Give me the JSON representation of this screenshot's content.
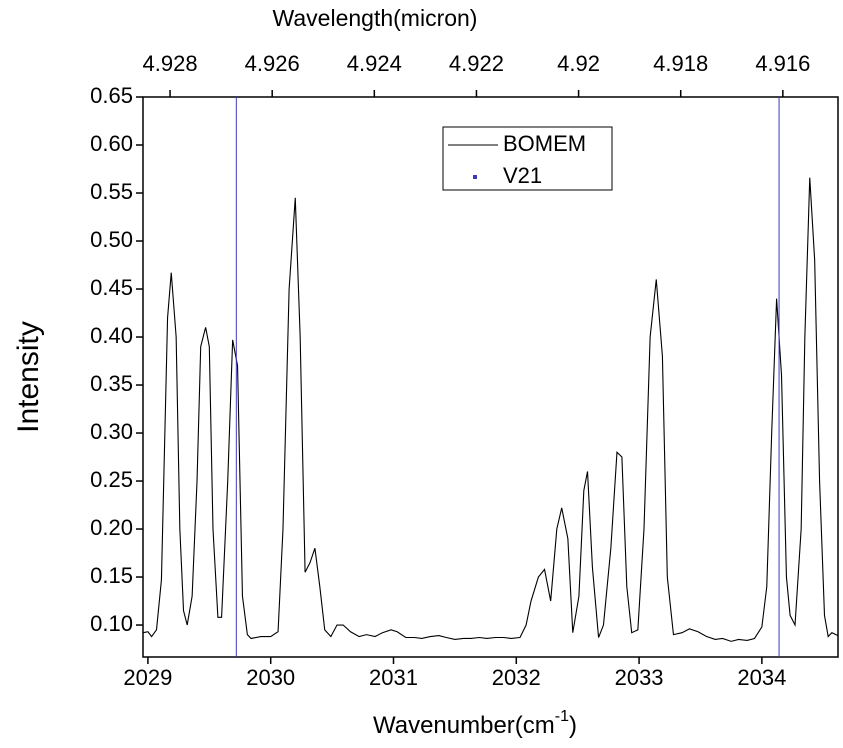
{
  "chart_data": {
    "type": "line",
    "x2_label": "Wavelength(micron)",
    "y_label": "Intensity",
    "x_label": [
      "Wavenumber(cm",
      "-1",
      ")"
    ],
    "xlim": [
      2028.96,
      2034.62
    ],
    "xticks": [
      2029,
      2030,
      2031,
      2032,
      2033,
      2034
    ],
    "x2lim": [
      4.92853,
      4.91492
    ],
    "x2ticks": [
      4.928,
      4.926,
      4.924,
      4.922,
      4.92,
      4.918,
      4.916
    ],
    "ylim": [
      0.0667,
      0.65
    ],
    "yticks": [
      {
        "value": 0.1,
        "label": "0.10"
      },
      0.15,
      {
        "value": 0.2,
        "label": "0.20"
      },
      0.25,
      {
        "value": 0.3,
        "label": "0.30"
      },
      0.35,
      {
        "value": 0.4,
        "label": "0.40"
      },
      0.45,
      {
        "value": 0.5,
        "label": "0.50"
      },
      0.55,
      {
        "value": 0.6,
        "label": "0.60"
      },
      0.65
    ],
    "series": [
      {
        "name": "BOMEM",
        "color": "#000000",
        "x": [
          2028.96,
          2029.0,
          2029.03,
          2029.07,
          2029.11,
          2029.16,
          2029.19,
          2029.23,
          2029.26,
          2029.29,
          2029.32,
          2029.36,
          2029.4,
          2029.43,
          2029.47,
          2029.5,
          2029.53,
          2029.57,
          2029.6,
          2029.65,
          2029.69,
          2029.73,
          2029.77,
          2029.81,
          2029.84,
          2029.92,
          2030.0,
          2030.06,
          2030.1,
          2030.15,
          2030.2,
          2030.24,
          2030.28,
          2030.32,
          2030.36,
          2030.4,
          2030.44,
          2030.49,
          2030.54,
          2030.59,
          2030.65,
          2030.72,
          2030.78,
          2030.85,
          2030.91,
          2030.98,
          2031.03,
          2031.1,
          2031.17,
          2031.23,
          2031.3,
          2031.37,
          2031.43,
          2031.5,
          2031.57,
          2031.63,
          2031.7,
          2031.76,
          2031.83,
          2031.9,
          2031.96,
          2032.03,
          2032.08,
          2032.12,
          2032.18,
          2032.23,
          2032.28,
          2032.33,
          2032.37,
          2032.42,
          2032.46,
          2032.51,
          2032.55,
          2032.58,
          2032.62,
          2032.67,
          2032.71,
          2032.77,
          2032.82,
          2032.86,
          2032.9,
          2032.94,
          2032.99,
          2033.04,
          2033.09,
          2033.14,
          2033.19,
          2033.23,
          2033.28,
          2033.35,
          2033.41,
          2033.48,
          2033.55,
          2033.62,
          2033.68,
          2033.75,
          2033.81,
          2033.88,
          2033.94,
          2034.0,
          2034.04,
          2034.08,
          2034.12,
          2034.16,
          2034.2,
          2034.23,
          2034.27,
          2034.32,
          2034.35,
          2034.39,
          2034.43,
          2034.47,
          2034.51,
          2034.54,
          2034.57,
          2034.62
        ],
        "values": [
          0.092,
          0.093,
          0.088,
          0.095,
          0.147,
          0.42,
          0.467,
          0.4,
          0.2,
          0.115,
          0.1,
          0.13,
          0.25,
          0.39,
          0.41,
          0.39,
          0.2,
          0.108,
          0.108,
          0.25,
          0.397,
          0.37,
          0.13,
          0.09,
          0.086,
          0.088,
          0.088,
          0.093,
          0.2,
          0.45,
          0.545,
          0.4,
          0.155,
          0.165,
          0.18,
          0.14,
          0.095,
          0.088,
          0.1,
          0.1,
          0.093,
          0.088,
          0.09,
          0.088,
          0.092,
          0.095,
          0.093,
          0.087,
          0.087,
          0.086,
          0.088,
          0.089,
          0.087,
          0.085,
          0.086,
          0.086,
          0.087,
          0.086,
          0.087,
          0.087,
          0.086,
          0.087,
          0.1,
          0.125,
          0.15,
          0.158,
          0.125,
          0.2,
          0.222,
          0.19,
          0.092,
          0.13,
          0.24,
          0.26,
          0.16,
          0.087,
          0.1,
          0.18,
          0.28,
          0.275,
          0.14,
          0.092,
          0.095,
          0.2,
          0.4,
          0.46,
          0.38,
          0.15,
          0.09,
          0.092,
          0.096,
          0.093,
          0.088,
          0.085,
          0.086,
          0.083,
          0.085,
          0.084,
          0.086,
          0.098,
          0.14,
          0.3,
          0.44,
          0.36,
          0.15,
          0.11,
          0.1,
          0.2,
          0.4,
          0.566,
          0.48,
          0.25,
          0.11,
          0.088,
          0.092,
          0.089
        ]
      },
      {
        "name": "V21",
        "color": "#3a3ab8",
        "x": [
          2029.72,
          2034.14
        ]
      }
    ]
  }
}
